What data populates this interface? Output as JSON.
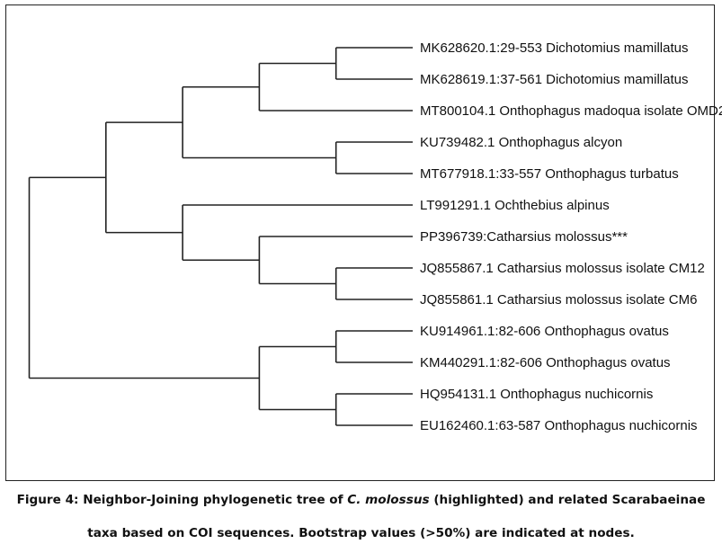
{
  "tree": {
    "children": [
      {
        "children": [
          {
            "children": [
              {
                "children": [
                  {
                    "children": [
                      {
                        "label": "MK628620.1:29-553 Dichotomius mamillatus"
                      },
                      {
                        "label": "MK628619.1:37-561 Dichotomius mamillatus"
                      }
                    ]
                  },
                  {
                    "label": "MT800104.1 Onthophagus madoqua isolate OMD2"
                  }
                ]
              },
              {
                "children": [
                  {
                    "label": "KU739482.1 Onthophagus alcyon"
                  },
                  {
                    "label": "MT677918.1:33-557 Onthophagus turbatus"
                  }
                ]
              }
            ]
          },
          {
            "children": [
              {
                "label": "LT991291.1 Ochthebius alpinus"
              },
              {
                "children": [
                  {
                    "label": "PP396739:Catharsius molossus***"
                  },
                  {
                    "children": [
                      {
                        "label": "JQ855867.1 Catharsius molossus isolate CM12"
                      },
                      {
                        "label": "JQ855861.1 Catharsius molossus isolate CM6"
                      }
                    ]
                  }
                ]
              }
            ]
          }
        ]
      },
      {
        "children": [
          {
            "children": [
              {
                "label": "KU914961.1:82-606 Onthophagus ovatus"
              },
              {
                "label": "KM440291.1:82-606 Onthophagus ovatus"
              }
            ]
          },
          {
            "children": [
              {
                "label": "HQ954131.1 Onthophagus nuchicornis"
              },
              {
                "label": "EU162460.1:63-587 Onthophagus nuchicornis"
              }
            ]
          }
        ]
      }
    ]
  },
  "caption": {
    "prefix": "Figure 4: Neighbor-Joining phylogenetic tree of ",
    "species": "C. molossus",
    "middle": " (highlighted) and related Scarabaeinae",
    "line2": "taxa based on COI sequences. Bootstrap values (>50%) are indicated at nodes."
  }
}
